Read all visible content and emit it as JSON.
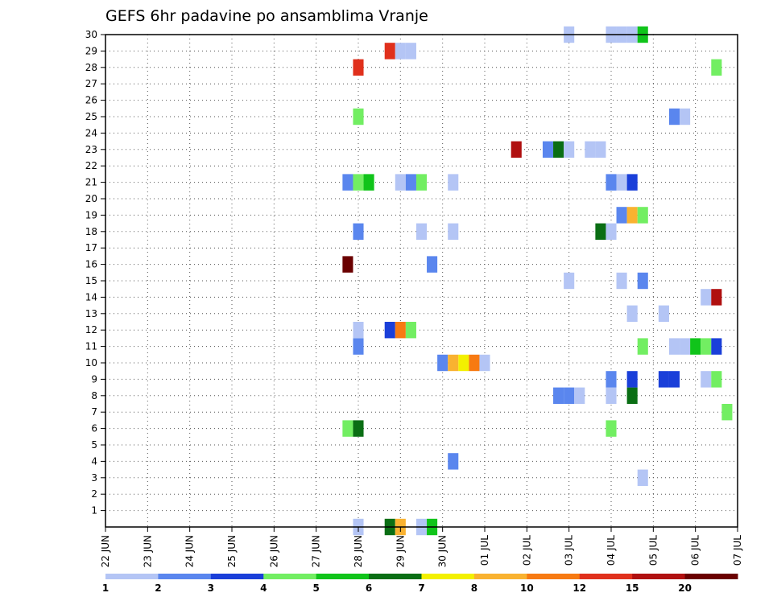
{
  "chart_data": {
    "type": "heatmap",
    "title": "GEFS 6hr padavine po ansamblima Vranje",
    "x_tick_labels": [
      "22 JUN",
      "23 JUN",
      "24 JUN",
      "25 JUN",
      "26 JUN",
      "27 JUN",
      "28 JUN",
      "29 JUN",
      "30 JUN",
      "01 JUL",
      "02 JUL",
      "03 JUL",
      "04 JUL",
      "05 JUL",
      "06 JUL",
      "07 JUL"
    ],
    "y_tick_labels": [
      "1",
      "2",
      "3",
      "4",
      "5",
      "6",
      "7",
      "8",
      "9",
      "10",
      "11",
      "12",
      "13",
      "14",
      "15",
      "16",
      "17",
      "18",
      "19",
      "20",
      "21",
      "22",
      "23",
      "24",
      "25",
      "26",
      "27",
      "28",
      "29",
      "30"
    ],
    "y_range": [
      0,
      30
    ],
    "grid": true,
    "colorbar": {
      "labels": [
        "1",
        "2",
        "3",
        "4",
        "5",
        "6",
        "7",
        "8",
        "10",
        "12",
        "15",
        "20"
      ],
      "colors": [
        "#b4c5f5",
        "#5a86ee",
        "#1a3fd9",
        "#72ee62",
        "#10c41a",
        "#0a6e14",
        "#f3f000",
        "#f9b230",
        "#f77a12",
        "#e0301c",
        "#b01010",
        "#6a0000"
      ]
    },
    "cells": [
      {
        "day": 28.0,
        "member": 0,
        "color": "#b4c5f5"
      },
      {
        "day": 28.75,
        "member": 0,
        "color": "#0a6e14"
      },
      {
        "day": 29.0,
        "member": 0,
        "color": "#f9b230"
      },
      {
        "day": 29.5,
        "member": 0,
        "color": "#b4c5f5"
      },
      {
        "day": 29.75,
        "member": 0,
        "color": "#10c41a"
      },
      {
        "day": 34.75,
        "member": 3,
        "color": "#b4c5f5"
      },
      {
        "day": 30.25,
        "member": 4,
        "color": "#5a86ee"
      },
      {
        "day": 27.75,
        "member": 6,
        "color": "#72ee62"
      },
      {
        "day": 28.0,
        "member": 6,
        "color": "#0a6e14"
      },
      {
        "day": 34.0,
        "member": 6,
        "color": "#72ee62"
      },
      {
        "day": 36.75,
        "member": 7,
        "color": "#72ee62"
      },
      {
        "day": 32.75,
        "member": 8,
        "color": "#5a86ee"
      },
      {
        "day": 33.0,
        "member": 8,
        "color": "#5a86ee"
      },
      {
        "day": 33.25,
        "member": 8,
        "color": "#b4c5f5"
      },
      {
        "day": 34.0,
        "member": 8,
        "color": "#b4c5f5"
      },
      {
        "day": 34.5,
        "member": 8,
        "color": "#0a6e14"
      },
      {
        "day": 34.0,
        "member": 9,
        "color": "#5a86ee"
      },
      {
        "day": 34.5,
        "member": 9,
        "color": "#1a3fd9"
      },
      {
        "day": 35.25,
        "member": 9,
        "color": "#1a3fd9"
      },
      {
        "day": 35.5,
        "member": 9,
        "color": "#1a3fd9"
      },
      {
        "day": 36.25,
        "member": 9,
        "color": "#b4c5f5"
      },
      {
        "day": 36.5,
        "member": 9,
        "color": "#72ee62"
      },
      {
        "day": 30.0,
        "member": 10,
        "color": "#5a86ee"
      },
      {
        "day": 30.25,
        "member": 10,
        "color": "#f9b230"
      },
      {
        "day": 30.5,
        "member": 10,
        "color": "#f3f000"
      },
      {
        "day": 30.75,
        "member": 10,
        "color": "#f77a12"
      },
      {
        "day": 31.0,
        "member": 10,
        "color": "#b4c5f5"
      },
      {
        "day": 28.0,
        "member": 11,
        "color": "#5a86ee"
      },
      {
        "day": 34.75,
        "member": 11,
        "color": "#72ee62"
      },
      {
        "day": 35.5,
        "member": 11,
        "color": "#b4c5f5"
      },
      {
        "day": 35.75,
        "member": 11,
        "color": "#b4c5f5"
      },
      {
        "day": 36.0,
        "member": 11,
        "color": "#10c41a"
      },
      {
        "day": 36.25,
        "member": 11,
        "color": "#72ee62"
      },
      {
        "day": 36.5,
        "member": 11,
        "color": "#1a3fd9"
      },
      {
        "day": 28.0,
        "member": 12,
        "color": "#b4c5f5"
      },
      {
        "day": 28.75,
        "member": 12,
        "color": "#1a3fd9"
      },
      {
        "day": 29.0,
        "member": 12,
        "color": "#f77a12"
      },
      {
        "day": 29.25,
        "member": 12,
        "color": "#72ee62"
      },
      {
        "day": 34.5,
        "member": 13,
        "color": "#b4c5f5"
      },
      {
        "day": 35.25,
        "member": 13,
        "color": "#b4c5f5"
      },
      {
        "day": 36.25,
        "member": 14,
        "color": "#b4c5f5"
      },
      {
        "day": 36.5,
        "member": 14,
        "color": "#b01010"
      },
      {
        "day": 33.0,
        "member": 15,
        "color": "#b4c5f5"
      },
      {
        "day": 34.25,
        "member": 15,
        "color": "#b4c5f5"
      },
      {
        "day": 34.75,
        "member": 15,
        "color": "#5a86ee"
      },
      {
        "day": 27.75,
        "member": 16,
        "color": "#6a0000"
      },
      {
        "day": 29.75,
        "member": 16,
        "color": "#5a86ee"
      },
      {
        "day": 28.0,
        "member": 18,
        "color": "#5a86ee"
      },
      {
        "day": 29.5,
        "member": 18,
        "color": "#b4c5f5"
      },
      {
        "day": 30.25,
        "member": 18,
        "color": "#b4c5f5"
      },
      {
        "day": 33.75,
        "member": 18,
        "color": "#0a6e14"
      },
      {
        "day": 34.0,
        "member": 18,
        "color": "#b4c5f5"
      },
      {
        "day": 34.25,
        "member": 19,
        "color": "#5a86ee"
      },
      {
        "day": 34.5,
        "member": 19,
        "color": "#f9b230"
      },
      {
        "day": 34.75,
        "member": 19,
        "color": "#72ee62"
      },
      {
        "day": 27.75,
        "member": 21,
        "color": "#5a86ee"
      },
      {
        "day": 28.0,
        "member": 21,
        "color": "#72ee62"
      },
      {
        "day": 28.25,
        "member": 21,
        "color": "#10c41a"
      },
      {
        "day": 29.0,
        "member": 21,
        "color": "#b4c5f5"
      },
      {
        "day": 29.25,
        "member": 21,
        "color": "#5a86ee"
      },
      {
        "day": 29.5,
        "member": 21,
        "color": "#72ee62"
      },
      {
        "day": 30.25,
        "member": 21,
        "color": "#b4c5f5"
      },
      {
        "day": 34.0,
        "member": 21,
        "color": "#5a86ee"
      },
      {
        "day": 34.25,
        "member": 21,
        "color": "#b4c5f5"
      },
      {
        "day": 34.5,
        "member": 21,
        "color": "#1a3fd9"
      },
      {
        "day": 31.75,
        "member": 23,
        "color": "#b01010"
      },
      {
        "day": 32.5,
        "member": 23,
        "color": "#5a86ee"
      },
      {
        "day": 32.75,
        "member": 23,
        "color": "#0a6e14"
      },
      {
        "day": 33.0,
        "member": 23,
        "color": "#b4c5f5"
      },
      {
        "day": 33.5,
        "member": 23,
        "color": "#b4c5f5"
      },
      {
        "day": 33.75,
        "member": 23,
        "color": "#b4c5f5"
      },
      {
        "day": 28.0,
        "member": 25,
        "color": "#72ee62"
      },
      {
        "day": 35.5,
        "member": 25,
        "color": "#5a86ee"
      },
      {
        "day": 35.75,
        "member": 25,
        "color": "#b4c5f5"
      },
      {
        "day": 28.0,
        "member": 28,
        "color": "#e0301c"
      },
      {
        "day": 36.5,
        "member": 28,
        "color": "#72ee62"
      },
      {
        "day": 28.75,
        "member": 29,
        "color": "#e0301c"
      },
      {
        "day": 29.0,
        "member": 29,
        "color": "#b4c5f5"
      },
      {
        "day": 29.25,
        "member": 29,
        "color": "#b4c5f5"
      },
      {
        "day": 33.0,
        "member": 30,
        "color": "#b4c5f5"
      },
      {
        "day": 34.0,
        "member": 30,
        "color": "#b4c5f5"
      },
      {
        "day": 34.25,
        "member": 30,
        "color": "#b4c5f5"
      },
      {
        "day": 34.5,
        "member": 30,
        "color": "#b4c5f5"
      },
      {
        "day": 34.75,
        "member": 30,
        "color": "#10c41a"
      }
    ]
  }
}
